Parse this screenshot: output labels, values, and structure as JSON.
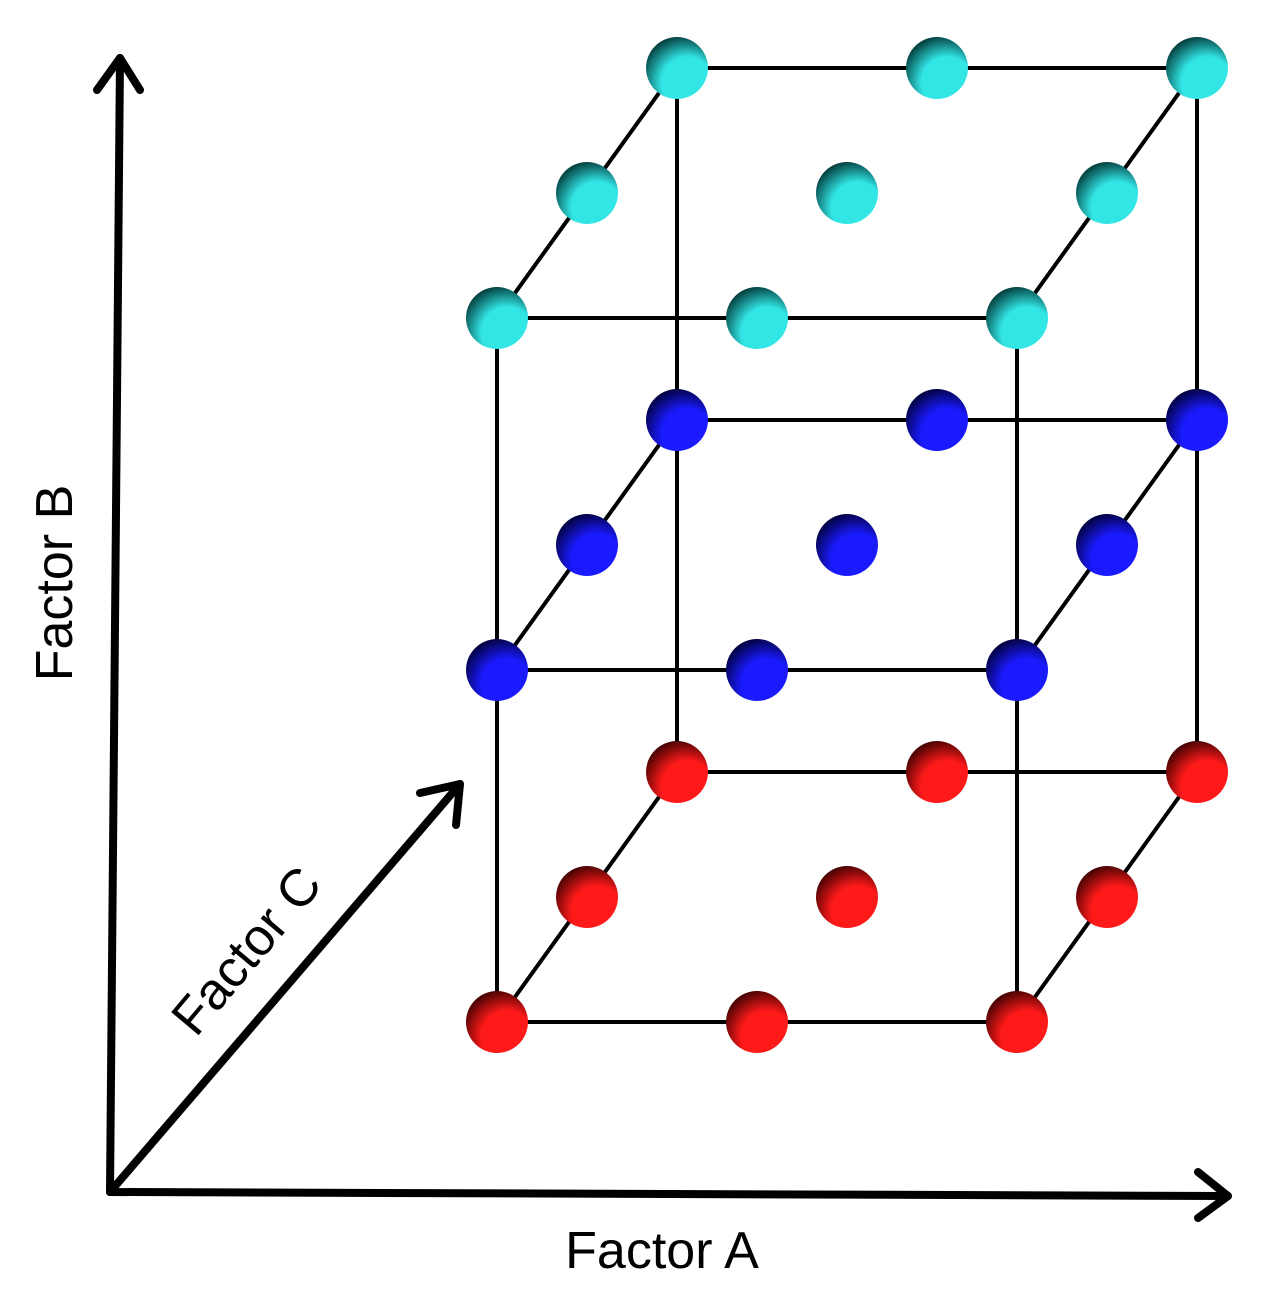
{
  "axes": {
    "x_label": "Factor A",
    "y_label": "Factor B",
    "z_label": "Factor C"
  },
  "design": {
    "levels_per_factor": 3,
    "layers": [
      {
        "level": 0,
        "color": "#ff1a1a",
        "shade": "#3a0000"
      },
      {
        "level": 1,
        "color": "#1a1aff",
        "shade": "#000033"
      },
      {
        "level": 2,
        "color": "#33e6e6",
        "shade": "#003333"
      }
    ],
    "points": [
      {
        "a": 0,
        "b": 0,
        "c": 0
      },
      {
        "a": 1,
        "b": 0,
        "c": 0
      },
      {
        "a": 2,
        "b": 0,
        "c": 0
      },
      {
        "a": 0,
        "b": 0,
        "c": 1
      },
      {
        "a": 1,
        "b": 0,
        "c": 1
      },
      {
        "a": 2,
        "b": 0,
        "c": 1
      },
      {
        "a": 0,
        "b": 0,
        "c": 2
      },
      {
        "a": 1,
        "b": 0,
        "c": 2
      },
      {
        "a": 2,
        "b": 0,
        "c": 2
      },
      {
        "a": 0,
        "b": 1,
        "c": 0
      },
      {
        "a": 1,
        "b": 1,
        "c": 0
      },
      {
        "a": 2,
        "b": 1,
        "c": 0
      },
      {
        "a": 0,
        "b": 1,
        "c": 1
      },
      {
        "a": 1,
        "b": 1,
        "c": 1
      },
      {
        "a": 2,
        "b": 1,
        "c": 1
      },
      {
        "a": 0,
        "b": 1,
        "c": 2
      },
      {
        "a": 1,
        "b": 1,
        "c": 2
      },
      {
        "a": 2,
        "b": 1,
        "c": 2
      },
      {
        "a": 0,
        "b": 2,
        "c": 0
      },
      {
        "a": 1,
        "b": 2,
        "c": 0
      },
      {
        "a": 2,
        "b": 2,
        "c": 0
      },
      {
        "a": 0,
        "b": 2,
        "c": 1
      },
      {
        "a": 1,
        "b": 2,
        "c": 1
      },
      {
        "a": 2,
        "b": 2,
        "c": 1
      },
      {
        "a": 0,
        "b": 2,
        "c": 2
      },
      {
        "a": 1,
        "b": 2,
        "c": 2
      },
      {
        "a": 2,
        "b": 2,
        "c": 2
      }
    ]
  }
}
